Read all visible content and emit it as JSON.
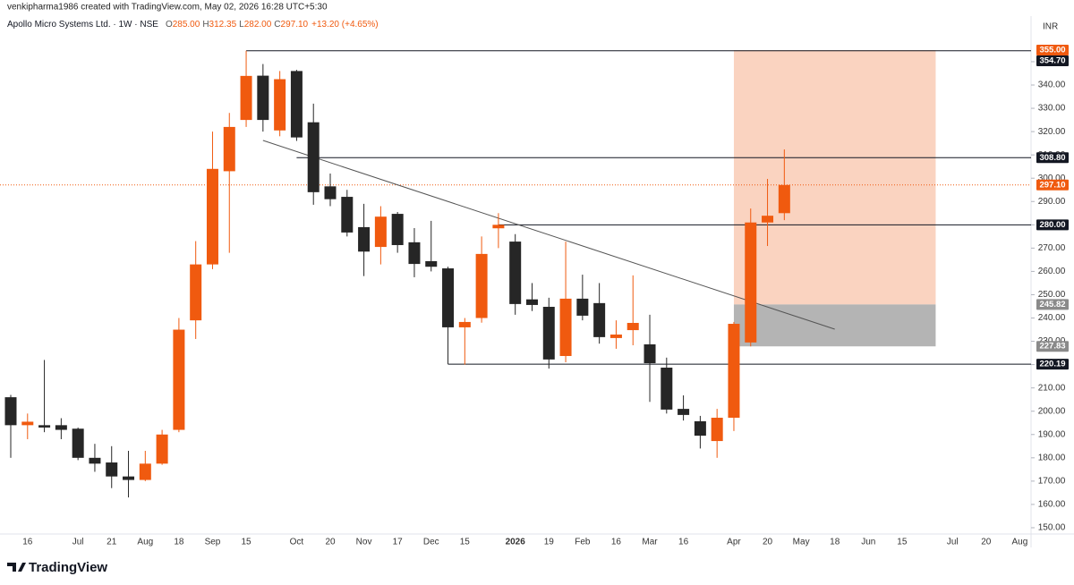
{
  "credit": "venkipharma1986 created with TradingView.com, May 02, 2026 16:28 UTC+5:30",
  "logo": "TradingView",
  "chart_data": {
    "type": "candlestick",
    "title": "Apollo Micro Systems Ltd. · 1W · NSE",
    "ohlc": [
      {
        "label": "O",
        "value": "285.00"
      },
      {
        "label": "H",
        "value": "312.35"
      },
      {
        "label": "L",
        "value": "282.00"
      },
      {
        "label": "C",
        "value": "297.10"
      }
    ],
    "change": "+13.20 (+4.65%)",
    "currency": "INR",
    "up_color": "#f05a0f",
    "down_color": "#262626",
    "categories": [
      null,
      "16",
      null,
      null,
      "Jul",
      null,
      "21",
      null,
      "Aug",
      null,
      "18",
      null,
      "Sep",
      null,
      "15",
      null,
      null,
      "Oct",
      null,
      "20",
      null,
      "Nov",
      null,
      "17",
      null,
      "Dec",
      null,
      "15",
      null,
      null,
      "2026",
      null,
      "19",
      null,
      "Feb",
      null,
      "16",
      null,
      "Mar",
      null,
      "16",
      null,
      null,
      "Apr",
      null,
      "20",
      null,
      "May",
      null,
      "18",
      null,
      "Jun",
      null,
      "15",
      null,
      null,
      "Jul",
      null,
      "20",
      null,
      "Aug"
    ],
    "open": [
      206,
      194,
      194,
      194,
      192.5,
      180,
      178,
      172,
      170.5,
      177.5,
      192,
      239,
      263,
      303,
      325,
      344,
      320.5,
      346,
      324,
      296.5,
      292,
      279,
      270.5,
      284.7,
      272.5,
      264.4,
      261.3,
      236,
      240,
      278.5,
      272.8,
      248,
      244.8,
      223.7,
      248.3,
      246.4,
      231.4,
      234.8,
      228.7,
      218.7,
      201,
      195.7,
      187.2,
      197.2,
      229.5,
      281,
      285,
      null,
      null,
      null,
      null,
      null,
      null,
      null,
      null,
      null,
      null,
      null,
      null,
      null,
      null
    ],
    "high": [
      207,
      199,
      222,
      197,
      193,
      186,
      185,
      183,
      183,
      192,
      240,
      273,
      320,
      328,
      354.7,
      349,
      346,
      346.5,
      332,
      302,
      295,
      289,
      288,
      285.5,
      278.6,
      281.7,
      262,
      240,
      275,
      285,
      276,
      255,
      248.7,
      272.8,
      258.6,
      255,
      239,
      258.3,
      241.4,
      223,
      206.8,
      198,
      201,
      238.3,
      287,
      299.7,
      312.35,
      null,
      null,
      null,
      null,
      null,
      null,
      null,
      null,
      null,
      null,
      null,
      null,
      null,
      null
    ],
    "low": [
      180,
      188,
      191,
      188,
      179,
      174,
      167,
      163,
      170,
      177,
      191,
      231,
      261,
      268,
      322,
      320,
      318,
      316,
      288.6,
      288,
      275,
      258,
      263,
      268,
      257.5,
      260,
      220.19,
      220,
      238,
      270,
      241.4,
      243,
      218.3,
      221,
      239,
      229,
      226.8,
      228.3,
      204,
      199,
      196,
      184,
      180,
      191.5,
      227.83,
      270.9,
      282,
      null,
      null,
      null,
      null,
      null,
      null,
      null,
      null,
      null,
      null,
      null,
      null,
      null,
      null
    ],
    "close": [
      194,
      195.5,
      193,
      192,
      180,
      177.5,
      172,
      170.5,
      177.5,
      190,
      235,
      263,
      304,
      322,
      343.9,
      325,
      342.5,
      317.5,
      294,
      291,
      276.7,
      268.5,
      283.5,
      271.3,
      263.2,
      262,
      236,
      238.3,
      267.5,
      280,
      246,
      245.6,
      222.2,
      248.3,
      241,
      231.8,
      232.9,
      237.9,
      220.6,
      200.7,
      198.4,
      189.5,
      197.2,
      237.5,
      281,
      283.9,
      297.1,
      null,
      null,
      null,
      null,
      null,
      null,
      null,
      null,
      null,
      null,
      null,
      null,
      null,
      null
    ],
    "ylim": [
      147.3,
      368.8
    ],
    "yticks": [
      {
        "value": 150,
        "label": "150.00"
      },
      {
        "value": 160,
        "label": "160.00"
      },
      {
        "value": 170,
        "label": "170.00"
      },
      {
        "value": 180,
        "label": "180.00"
      },
      {
        "value": 190,
        "label": "190.00"
      },
      {
        "value": 200,
        "label": "200.00"
      },
      {
        "value": 210,
        "label": "210.00"
      },
      {
        "value": 220,
        "label": "220.00"
      },
      {
        "value": 230,
        "label": "230.00"
      },
      {
        "value": 240,
        "label": "240.00"
      },
      {
        "value": 250,
        "label": "250.00"
      },
      {
        "value": 260,
        "label": "260.00"
      },
      {
        "value": 270,
        "label": "270.00"
      },
      {
        "value": 280,
        "label": "280.00"
      },
      {
        "value": 290,
        "label": "290.00"
      },
      {
        "value": 300,
        "label": "300.00"
      },
      {
        "value": 310,
        "label": "310.00"
      },
      {
        "value": 320,
        "label": "320.00"
      },
      {
        "value": 330,
        "label": "330.00"
      },
      {
        "value": 340,
        "label": "340.00"
      },
      {
        "value": 350,
        "label": "350.00"
      }
    ],
    "grid": false,
    "levels": [
      {
        "value": 354.7,
        "label": "354.70",
        "from": 14
      },
      {
        "value": 308.8,
        "label": "308.80",
        "from": 17
      },
      {
        "value": 280,
        "label": "280.00",
        "from": 29
      },
      {
        "value": 220.19,
        "label": "220.19",
        "from": 26
      }
    ],
    "current": {
      "value": 297.1,
      "label": "297.10",
      "color": "#f05a0f"
    },
    "trendline": {
      "x": [
        15,
        49
      ],
      "y": [
        316.2,
        235.2
      ]
    },
    "position": {
      "from": 43,
      "to": 55,
      "profit_color": "#fad3c0",
      "loss_color": "#b4b4b4",
      "target": {
        "value": 355,
        "label": "355.00"
      },
      "entry": {
        "value": 245.82,
        "label": "245.82"
      },
      "stop": {
        "value": 227.83,
        "label": "227.83"
      }
    }
  }
}
